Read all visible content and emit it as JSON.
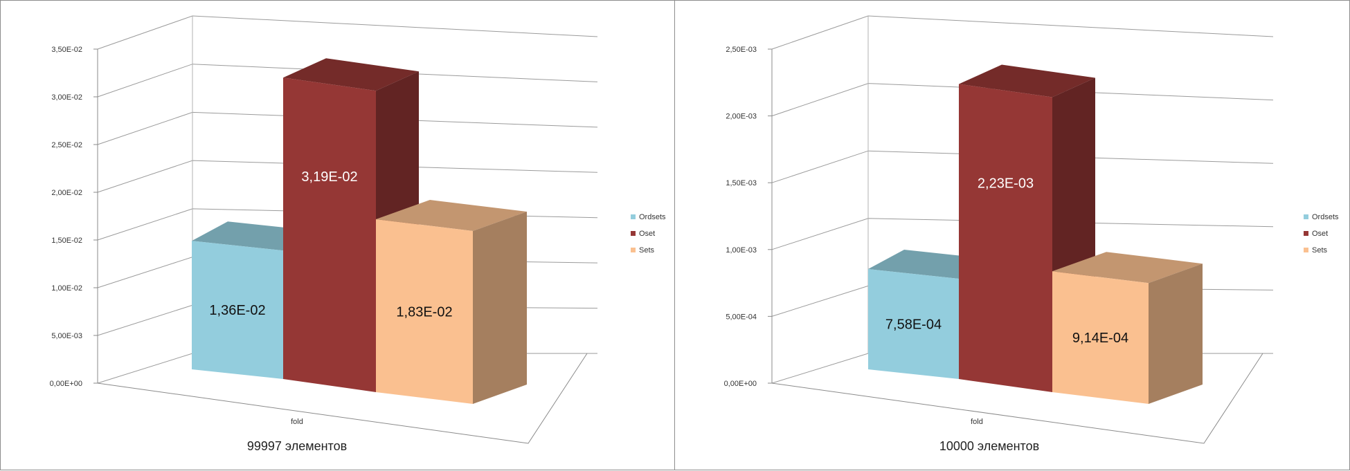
{
  "chart_data": [
    {
      "type": "bar",
      "title": "99997 элементов",
      "categories": [
        "fold"
      ],
      "series": [
        {
          "name": "Ordsets",
          "values": [
            0.0136
          ],
          "label": "1,36E-02"
        },
        {
          "name": "Oset",
          "values": [
            0.0319
          ],
          "label": "3,19E-02"
        },
        {
          "name": "Sets",
          "values": [
            0.0183
          ],
          "label": "1,83E-02"
        }
      ],
      "ylim": [
        0,
        0.035
      ],
      "ytick_labels": [
        "0,00E+00",
        "5,00E-03",
        "1,00E-02",
        "1,50E-02",
        "2,00E-02",
        "2,50E-02",
        "3,00E-02",
        "3,50E-02"
      ],
      "grid": true,
      "legend": "right"
    },
    {
      "type": "bar",
      "title": "10000 элементов",
      "categories": [
        "fold"
      ],
      "series": [
        {
          "name": "Ordsets",
          "values": [
            0.000758
          ],
          "label": "7,58E-04"
        },
        {
          "name": "Oset",
          "values": [
            0.00223
          ],
          "label": "2,23E-03"
        },
        {
          "name": "Sets",
          "values": [
            0.000914
          ],
          "label": "9,14E-04"
        }
      ],
      "ylim": [
        0,
        0.0025
      ],
      "ytick_labels": [
        "0,00E+00",
        "5,00E-04",
        "1,00E-03",
        "1,50E-03",
        "2,00E-03",
        "2,50E-03"
      ],
      "grid": true,
      "legend": "right"
    }
  ],
  "colors": {
    "Ordsets": "#93cddd",
    "Oset": "#953735",
    "Sets": "#fac090"
  }
}
